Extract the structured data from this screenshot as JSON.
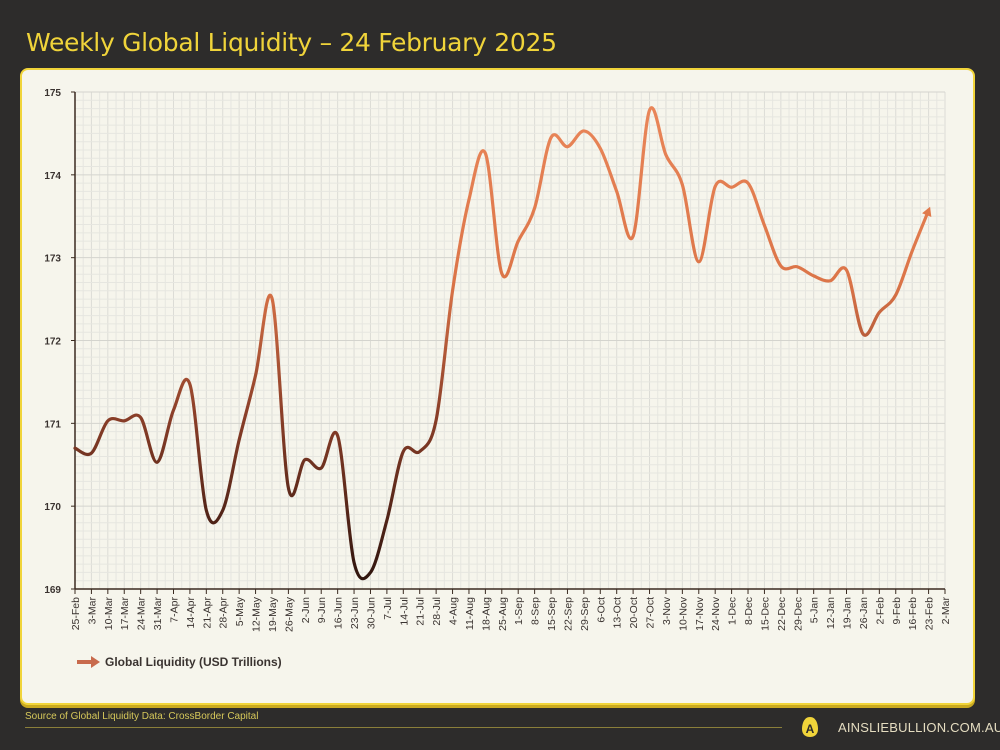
{
  "title": "Weekly Global Liquidity – 24 February 2025",
  "footer": {
    "source": "Source of Global Liquidity Data: CrossBorder Capital",
    "site": "AINSLIEBULLION.COM.AU",
    "logo_letter": "A"
  },
  "colors": {
    "accent": "#f0d43a",
    "line_low": "#2a120c",
    "line_high": "#e8845a",
    "background": "#2d2c2b",
    "panel": "#f6f5ec"
  },
  "chart_data": {
    "type": "line",
    "title": "Weekly Global Liquidity – 24 February 2025",
    "xlabel": "",
    "ylabel": "",
    "ylim": [
      169,
      175
    ],
    "yticks": [
      169,
      170,
      171,
      172,
      173,
      174,
      175
    ],
    "grid": true,
    "legend_position": "bottom-left",
    "x_tick_labels": [
      "25-Feb",
      "3-Mar",
      "10-Mar",
      "17-Mar",
      "24-Mar",
      "31-Mar",
      "7-Apr",
      "14-Apr",
      "21-Apr",
      "28-Apr",
      "5-May",
      "12-May",
      "19-May",
      "26-May",
      "2-Jun",
      "9-Jun",
      "16-Jun",
      "23-Jun",
      "30-Jun",
      "7-Jul",
      "14-Jul",
      "21-Jul",
      "28-Jul",
      "4-Aug",
      "11-Aug",
      "18-Aug",
      "25-Aug",
      "1-Sep",
      "8-Sep",
      "15-Sep",
      "22-Sep",
      "29-Sep",
      "6-Oct",
      "13-Oct",
      "20-Oct",
      "27-Oct",
      "3-Nov",
      "10-Nov",
      "17-Nov",
      "24-Nov",
      "1-Dec",
      "8-Dec",
      "15-Dec",
      "22-Dec",
      "29-Dec",
      "5-Jan",
      "12-Jan",
      "19-Jan",
      "26-Jan",
      "2-Feb",
      "9-Feb",
      "16-Feb",
      "23-Feb",
      "2-Mar"
    ],
    "series": [
      {
        "name": "Global Liquidity (USD Trillions)",
        "values": [
          170.7,
          170.64,
          171.03,
          171.03,
          171.07,
          170.53,
          171.16,
          171.47,
          169.95,
          169.95,
          170.8,
          171.58,
          172.51,
          170.22,
          170.56,
          170.46,
          170.85,
          169.32,
          169.2,
          169.83,
          170.66,
          170.66,
          171.04,
          172.6,
          173.7,
          174.26,
          172.81,
          173.2,
          173.6,
          174.45,
          174.34,
          174.53,
          174.32,
          173.8,
          173.26,
          174.78,
          174.24,
          173.88,
          172.95,
          173.86,
          173.85,
          173.9,
          173.39,
          172.9,
          172.89,
          172.78,
          172.72,
          172.85,
          172.08,
          172.34,
          172.55,
          173.08,
          173.57
        ]
      }
    ]
  }
}
